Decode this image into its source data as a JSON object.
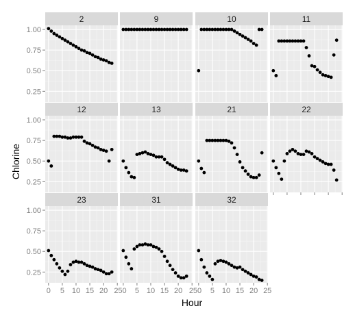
{
  "chart_data": {
    "type": "scatter",
    "layout": "facet-wrap",
    "xlabel": "Hour",
    "ylabel": "Chlorine",
    "xlim": [
      -1.2,
      25.2
    ],
    "ylim": [
      0.12,
      1.05
    ],
    "x_ticks": [
      0,
      5,
      10,
      15,
      20,
      25
    ],
    "y_ticks": [
      0.25,
      0.5,
      0.75,
      1.0
    ],
    "y_tick_labels": [
      "0.25",
      "0.50",
      "0.75",
      "1.00"
    ],
    "x_tick_labels_shown": [
      [
        "0",
        "5",
        "10",
        "15",
        "20",
        "25"
      ],
      [
        "0",
        "5",
        "10",
        "15",
        "20",
        "25"
      ],
      [
        "0",
        "5",
        "10",
        "15",
        "20",
        "25"
      ],
      [
        "0",
        "5",
        "10",
        "15",
        "20",
        "25"
      ]
    ],
    "x_tick_labels_printed": [
      "0",
      "5",
      "10",
      "15",
      "20",
      "250",
      "5",
      "10",
      "15",
      "20",
      "250",
      "5",
      "10",
      "15",
      "20",
      "25"
    ],
    "panel_bg": "#ebebeb",
    "strip_bg": "#d9d9d9",
    "point_color": "#000000",
    "grid": true,
    "panels": [
      {
        "label": "2",
        "x": [
          0,
          1,
          2,
          3,
          4,
          5,
          6,
          7,
          8,
          9,
          10,
          11,
          12,
          13,
          14,
          15,
          16,
          17,
          18,
          19,
          20,
          21,
          22,
          23
        ],
        "y": [
          1.01,
          0.98,
          0.95,
          0.93,
          0.91,
          0.89,
          0.87,
          0.85,
          0.83,
          0.81,
          0.79,
          0.77,
          0.75,
          0.74,
          0.72,
          0.71,
          0.69,
          0.67,
          0.66,
          0.64,
          0.63,
          0.62,
          0.6,
          0.59
        ]
      },
      {
        "label": "9",
        "x": [
          0,
          1,
          2,
          3,
          4,
          5,
          6,
          7,
          8,
          9,
          10,
          11,
          12,
          13,
          14,
          15,
          16,
          17,
          18,
          19,
          20,
          21,
          22,
          23
        ],
        "y": [
          1.0,
          1.0,
          1.0,
          1.0,
          1.0,
          1.0,
          1.0,
          1.0,
          1.0,
          1.0,
          1.0,
          1.0,
          1.0,
          1.0,
          1.0,
          1.0,
          1.0,
          1.0,
          1.0,
          1.0,
          1.0,
          1.0,
          1.0,
          1.0
        ]
      },
      {
        "label": "10",
        "x": [
          0,
          1,
          2,
          3,
          4,
          5,
          6,
          7,
          8,
          9,
          10,
          11,
          12,
          13,
          14,
          15,
          16,
          17,
          18,
          19,
          20,
          21,
          22,
          23
        ],
        "y": [
          0.5,
          1.0,
          1.0,
          1.0,
          1.0,
          1.0,
          1.0,
          1.0,
          1.0,
          1.0,
          1.0,
          1.0,
          1.0,
          0.98,
          0.96,
          0.94,
          0.92,
          0.9,
          0.88,
          0.86,
          0.83,
          0.81,
          1.0,
          1.0
        ]
      },
      {
        "label": "11",
        "x": [
          0,
          1,
          2,
          3,
          4,
          5,
          6,
          7,
          8,
          9,
          10,
          11,
          12,
          13,
          14,
          15,
          16,
          17,
          18,
          19,
          20,
          21,
          22,
          23
        ],
        "y": [
          0.5,
          0.44,
          0.86,
          0.86,
          0.86,
          0.86,
          0.86,
          0.86,
          0.86,
          0.86,
          0.86,
          0.86,
          0.78,
          0.68,
          0.56,
          0.55,
          0.51,
          0.48,
          0.45,
          0.44,
          0.43,
          0.42,
          0.69,
          0.87
        ]
      },
      {
        "label": "12",
        "x": [
          0,
          1,
          2,
          3,
          4,
          5,
          6,
          7,
          8,
          9,
          10,
          11,
          12,
          13,
          14,
          15,
          16,
          17,
          18,
          19,
          20,
          21,
          22,
          23
        ],
        "y": [
          0.5,
          0.44,
          0.8,
          0.8,
          0.8,
          0.79,
          0.79,
          0.78,
          0.78,
          0.79,
          0.79,
          0.79,
          0.79,
          0.74,
          0.72,
          0.71,
          0.69,
          0.67,
          0.66,
          0.64,
          0.63,
          0.62,
          0.5,
          0.64
        ]
      },
      {
        "label": "13",
        "x": [
          0,
          1,
          2,
          3,
          4,
          5,
          6,
          7,
          8,
          9,
          10,
          11,
          12,
          13,
          14,
          15,
          16,
          17,
          18,
          19,
          20,
          21,
          22,
          23
        ],
        "y": [
          0.5,
          0.42,
          0.36,
          0.31,
          0.3,
          0.58,
          0.59,
          0.6,
          0.61,
          0.59,
          0.58,
          0.57,
          0.55,
          0.55,
          0.55,
          0.52,
          0.48,
          0.46,
          0.44,
          0.42,
          0.4,
          0.39,
          0.39,
          0.38
        ]
      },
      {
        "label": "21",
        "x": [
          0,
          1,
          2,
          3,
          4,
          5,
          6,
          7,
          8,
          9,
          10,
          11,
          12,
          13,
          14,
          15,
          16,
          17,
          18,
          19,
          20,
          21,
          22,
          23
        ],
        "y": [
          0.5,
          0.41,
          0.36,
          0.75,
          0.75,
          0.75,
          0.75,
          0.75,
          0.75,
          0.75,
          0.75,
          0.74,
          0.72,
          0.66,
          0.58,
          0.49,
          0.42,
          0.38,
          0.34,
          0.31,
          0.3,
          0.3,
          0.33,
          0.6
        ]
      },
      {
        "label": "22",
        "x": [
          0,
          1,
          2,
          3,
          4,
          5,
          6,
          7,
          8,
          9,
          10,
          11,
          12,
          13,
          14,
          15,
          16,
          17,
          18,
          19,
          20,
          21,
          22,
          23
        ],
        "y": [
          0.5,
          0.42,
          0.35,
          0.28,
          0.5,
          0.59,
          0.62,
          0.64,
          0.62,
          0.59,
          0.58,
          0.58,
          0.62,
          0.61,
          0.59,
          0.55,
          0.53,
          0.51,
          0.49,
          0.47,
          0.46,
          0.46,
          0.39,
          0.27
        ]
      },
      {
        "label": "23",
        "x": [
          0,
          1,
          2,
          3,
          4,
          5,
          6,
          7,
          8,
          9,
          10,
          11,
          12,
          13,
          14,
          15,
          16,
          17,
          18,
          19,
          20,
          21,
          22,
          23
        ],
        "y": [
          0.51,
          0.45,
          0.4,
          0.35,
          0.3,
          0.26,
          0.22,
          0.26,
          0.34,
          0.37,
          0.38,
          0.37,
          0.37,
          0.35,
          0.33,
          0.32,
          0.31,
          0.29,
          0.28,
          0.27,
          0.25,
          0.23,
          0.23,
          0.25
        ]
      },
      {
        "label": "31",
        "x": [
          0,
          1,
          2,
          3,
          4,
          5,
          6,
          7,
          8,
          9,
          10,
          11,
          12,
          13,
          14,
          15,
          16,
          17,
          18,
          19,
          20,
          21,
          22,
          23
        ],
        "y": [
          0.51,
          0.43,
          0.35,
          0.29,
          0.53,
          0.56,
          0.58,
          0.58,
          0.59,
          0.58,
          0.58,
          0.56,
          0.55,
          0.53,
          0.5,
          0.44,
          0.38,
          0.33,
          0.28,
          0.24,
          0.2,
          0.18,
          0.18,
          0.2
        ]
      },
      {
        "label": "32",
        "x": [
          0,
          1,
          2,
          3,
          4,
          5,
          6,
          7,
          8,
          9,
          10,
          11,
          12,
          13,
          14,
          15,
          16,
          17,
          18,
          19,
          20,
          21,
          22,
          23
        ],
        "y": [
          0.51,
          0.4,
          0.31,
          0.24,
          0.2,
          0.16,
          0.35,
          0.38,
          0.39,
          0.38,
          0.37,
          0.35,
          0.33,
          0.31,
          0.3,
          0.31,
          0.28,
          0.26,
          0.24,
          0.22,
          0.2,
          0.19,
          0.16,
          0.15
        ]
      }
    ]
  }
}
